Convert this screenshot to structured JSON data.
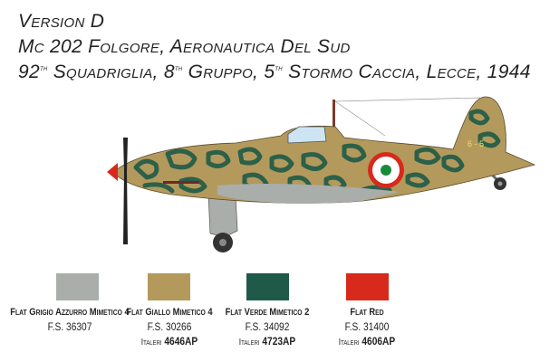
{
  "header": {
    "version": "Version D",
    "aircraft": "Mc 202 Folgore, Aeronautica Del Sud",
    "unit": {
      "squadriglia_num": "92",
      "squadriglia_sup": "th",
      "squadriglia": "Squadriglia,",
      "gruppo_num": "8",
      "gruppo_sup": "th",
      "gruppo": "Gruppo,",
      "stormo_num": "5",
      "stormo_sup": "th",
      "stormo": "Stormo Caccia, Lecce, 1944"
    }
  },
  "illustration": {
    "tail_code": "6 - 5"
  },
  "colors": [
    {
      "name": "Flat Grigio Azzurro Mimetico 4",
      "fs": "F.S. 36307",
      "hex": "#a9aeab"
    },
    {
      "name": "Flat Giallo Mimetico 4",
      "fs": "F.S. 30266",
      "brand": "Italeri",
      "code": "4646AP",
      "hex": "#b39a5c"
    },
    {
      "name": "Flat Verde Mimetico 2",
      "fs": "F.S. 34092",
      "brand": "Italeri",
      "code": "4723AP",
      "hex": "#1f5a48"
    },
    {
      "name": "Flat Red",
      "fs": "F.S. 31400",
      "brand": "Italeri",
      "code": "4606AP",
      "hex": "#d8291d"
    }
  ]
}
